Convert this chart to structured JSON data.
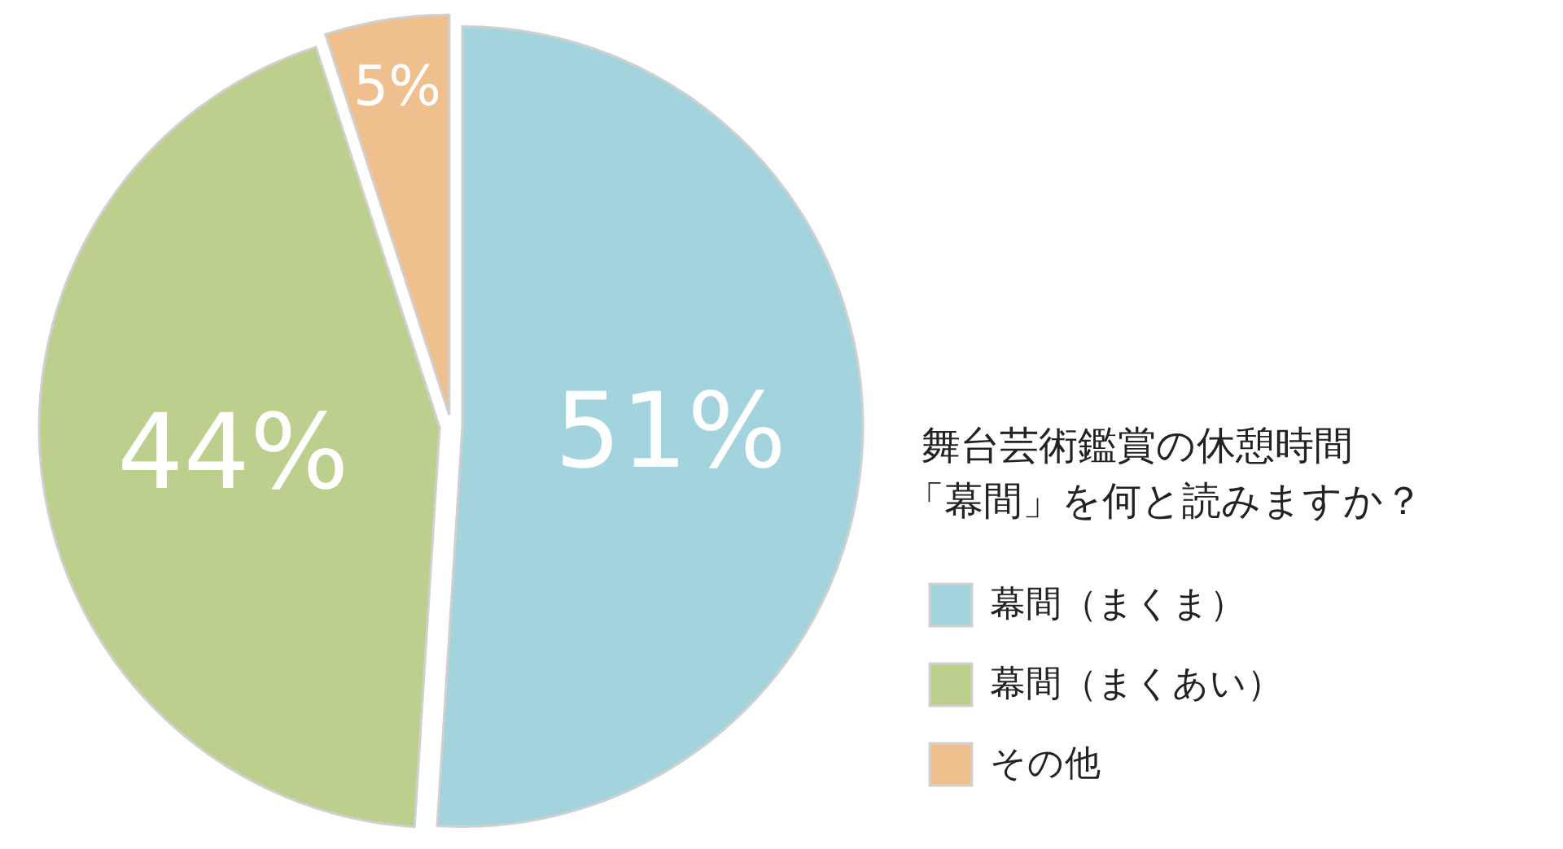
{
  "chart_data": {
    "type": "pie",
    "title": "舞台芸術鑑賞の休憩時間「幕間」を何と読みますか？",
    "categories": [
      "幕間（まくま）",
      "幕間（まくあい）",
      "その他"
    ],
    "values": [
      51,
      44,
      5
    ],
    "colors": [
      "#a3d3dc",
      "#bccf8c",
      "#f0bf8e"
    ],
    "value_labels": [
      "51%",
      "44%",
      "5%"
    ],
    "legend": "right"
  }
}
